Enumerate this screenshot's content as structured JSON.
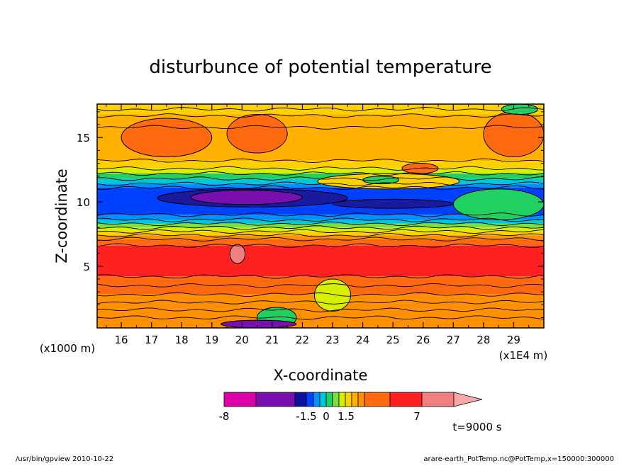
{
  "chart_data": {
    "type": "heatmap",
    "title": "disturbunce of potential temperature",
    "xlabel": "X-coordinate",
    "ylabel": "Z-coordinate",
    "x_unit": "(x1E4 m)",
    "y_unit": "(x1000 m)",
    "xlim": [
      15.2,
      30.0
    ],
    "ylim": [
      0.2,
      17.6
    ],
    "x_ticks": [
      "16",
      "17",
      "18",
      "19",
      "20",
      "21",
      "22",
      "23",
      "24",
      "25",
      "26",
      "27",
      "28",
      "29"
    ],
    "y_ticks": [
      "5",
      "10",
      "15"
    ],
    "time_label": "t=9000 s",
    "colorbar": {
      "labels": [
        "-8",
        "-1.5",
        "0",
        "1.5",
        "7"
      ],
      "colors": [
        "#dd00aa",
        "#7a0fb0",
        "#1010a0",
        "#0040ff",
        "#0090ff",
        "#00c8d8",
        "#20d060",
        "#7ee040",
        "#d8f000",
        "#ffd000",
        "#ffb000",
        "#ff9000",
        "#ff6a10",
        "#ff2020",
        "#f08080",
        "#f8a8a8"
      ]
    },
    "bands": [
      {
        "z": [
          16.8,
          17.6
        ],
        "color": "#ffd000"
      },
      {
        "z": [
          15.8,
          16.8
        ],
        "color": "#ffb000"
      },
      {
        "z": [
          13.2,
          15.8
        ],
        "color": "#ffb000"
      },
      {
        "z": [
          12.6,
          13.2
        ],
        "color": "#ffd000"
      },
      {
        "z": [
          12.2,
          12.6
        ],
        "color": "#d8f000"
      },
      {
        "z": [
          11.8,
          12.2
        ],
        "color": "#20d060"
      },
      {
        "z": [
          11.4,
          11.8
        ],
        "color": "#00c8d8"
      },
      {
        "z": [
          11.1,
          11.4
        ],
        "color": "#0090ff"
      },
      {
        "z": [
          9.0,
          11.1
        ],
        "color": "#0040ff"
      },
      {
        "z": [
          8.6,
          9.0
        ],
        "color": "#0090ff"
      },
      {
        "z": [
          8.3,
          8.6
        ],
        "color": "#00c8d8"
      },
      {
        "z": [
          8.0,
          8.3
        ],
        "color": "#7ee040"
      },
      {
        "z": [
          7.7,
          8.0
        ],
        "color": "#d8f000"
      },
      {
        "z": [
          7.4,
          7.7
        ],
        "color": "#ffd000"
      },
      {
        "z": [
          7.1,
          7.4
        ],
        "color": "#ff9000"
      },
      {
        "z": [
          6.6,
          7.1
        ],
        "color": "#ff6a10"
      },
      {
        "z": [
          4.2,
          6.6
        ],
        "color": "#ff2020"
      },
      {
        "z": [
          2.8,
          4.2
        ],
        "color": "#ff6a10"
      },
      {
        "z": [
          0.2,
          2.8
        ],
        "color": "#ff9000"
      }
    ],
    "features": [
      {
        "x": [
          16.0,
          19.0
        ],
        "z": [
          13.5,
          16.5
        ],
        "color": "#ff6a10"
      },
      {
        "x": [
          19.5,
          21.5
        ],
        "z": [
          13.8,
          16.8
        ],
        "color": "#ff6a10"
      },
      {
        "x": [
          28.0,
          30.0
        ],
        "z": [
          13.5,
          17.0
        ],
        "color": "#ff6a10"
      },
      {
        "x": [
          25.3,
          26.5
        ],
        "z": [
          12.2,
          13.0
        ],
        "color": "#ff6a10"
      },
      {
        "x": [
          22.5,
          27.2
        ],
        "z": [
          11.0,
          12.2
        ],
        "color": "#ffd000"
      },
      {
        "x": [
          24.0,
          25.2
        ],
        "z": [
          11.4,
          12.0
        ],
        "color": "#20d060"
      },
      {
        "x": [
          27.0,
          30.0
        ],
        "z": [
          8.6,
          11.0
        ],
        "color": "#20d060"
      },
      {
        "x": [
          17.2,
          23.5
        ],
        "z": [
          9.6,
          11.0
        ],
        "color": "#1a1a9e"
      },
      {
        "x": [
          18.3,
          22.0
        ],
        "z": [
          9.8,
          10.9
        ],
        "color": "#7a0fb0"
      },
      {
        "x": [
          23.0,
          27.0
        ],
        "z": [
          9.5,
          10.2
        ],
        "color": "#1a1a9e"
      },
      {
        "x": [
          28.6,
          29.8
        ],
        "z": [
          16.8,
          17.6
        ],
        "color": "#20d060"
      },
      {
        "x": [
          19.6,
          20.1
        ],
        "z": [
          5.2,
          6.7
        ],
        "color": "#f08080"
      },
      {
        "x": [
          22.4,
          23.6
        ],
        "z": [
          1.5,
          4.0
        ],
        "color": "#d8f000"
      },
      {
        "x": [
          20.5,
          21.8
        ],
        "z": [
          0.2,
          1.8
        ],
        "color": "#20d060"
      },
      {
        "x": [
          19.3,
          21.8
        ],
        "z": [
          0.2,
          0.8
        ],
        "color": "#7a0fb0"
      }
    ],
    "contour_levels_z": [
      17.2,
      16.7,
      15.8,
      13.2,
      12.6,
      12.2,
      11.8,
      11.4,
      11.1,
      9.0,
      8.6,
      8.3,
      8.0,
      7.7,
      7.4,
      7.1,
      6.6,
      4.2,
      3.5,
      2.8,
      2.2,
      1.6,
      1.0
    ]
  },
  "footer": {
    "left": "/usr/bin/gpview   2010-10-22",
    "right": "arare-earth_PotTemp.nc@PotTemp,x=150000:300000"
  }
}
